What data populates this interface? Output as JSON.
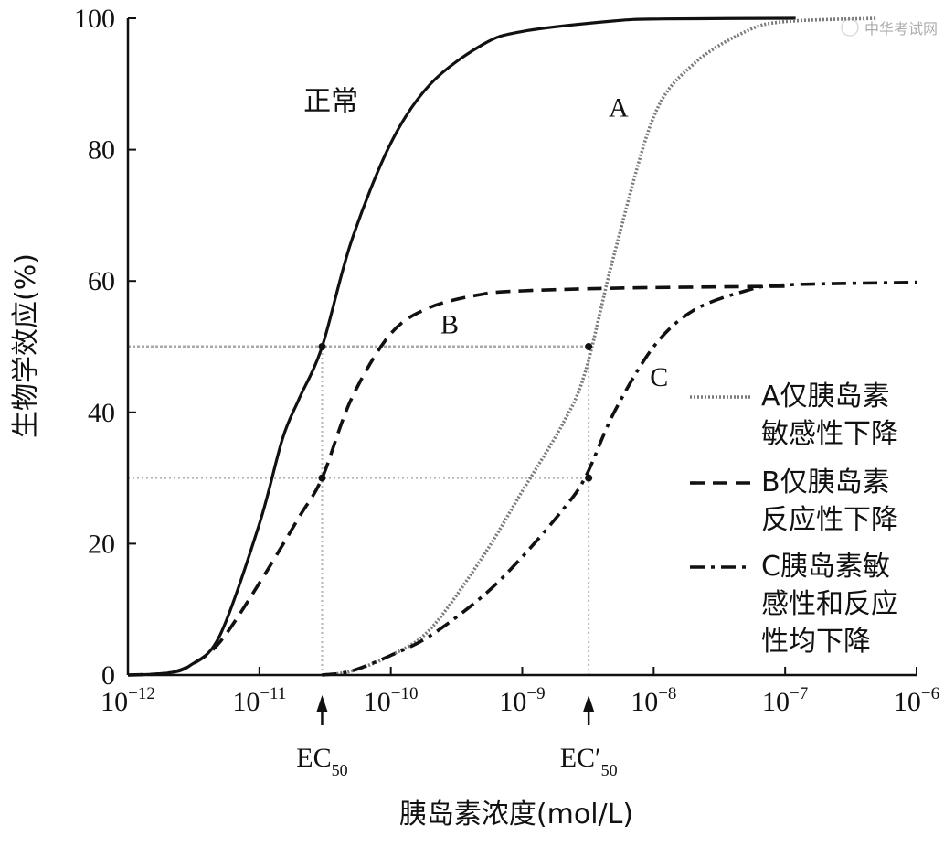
{
  "watermark": "中华考试网",
  "chart_data": {
    "type": "line",
    "title": "",
    "xlabel": "胰岛素浓度(mol/L)",
    "ylabel": "生物学效应(%)",
    "x_scale": "log",
    "xlim": [
      1e-12,
      1e-06
    ],
    "ylim": [
      0,
      100
    ],
    "x_ticks": [
      {
        "value": 1e-12,
        "base": "10",
        "exp": "−12"
      },
      {
        "value": 1e-11,
        "base": "10",
        "exp": "−11"
      },
      {
        "value": 1e-10,
        "base": "10",
        "exp": "−10"
      },
      {
        "value": 1e-09,
        "base": "10",
        "exp": "−9"
      },
      {
        "value": 1e-08,
        "base": "10",
        "exp": "−8"
      },
      {
        "value": 1e-07,
        "base": "10",
        "exp": "−7"
      },
      {
        "value": 1e-06,
        "base": "10",
        "exp": "−6"
      }
    ],
    "y_ticks": [
      "0",
      "20",
      "40",
      "60",
      "80",
      "100"
    ],
    "grid": false,
    "series": [
      {
        "key": "normal",
        "name": "正常",
        "style": "solid",
        "color": "#111111",
        "x": [
          1e-12,
          2e-12,
          3e-12,
          5e-12,
          1e-11,
          1.5e-11,
          2e-11,
          3e-11,
          5e-11,
          1e-10,
          2e-10,
          5e-10,
          1e-09,
          5e-09,
          1.2e-08,
          1.2e-07
        ],
        "y": [
          0,
          0.3,
          1.5,
          6,
          23,
          36,
          42,
          50,
          66,
          81,
          90,
          96,
          98,
          99.6,
          99.9,
          100
        ]
      },
      {
        "key": "A",
        "name": "A仅胰岛素敏感性下降",
        "style": "dotted",
        "color": "#7a7a7a",
        "x": [
          3e-11,
          5e-11,
          1e-10,
          2e-10,
          5e-10,
          1e-09,
          2e-09,
          3e-09,
          5e-09,
          1e-08,
          2e-08,
          5e-08,
          1e-07,
          5e-07
        ],
        "y": [
          0,
          0.6,
          3,
          7,
          18,
          28,
          38,
          46,
          64,
          85,
          93,
          98,
          99.5,
          100
        ]
      },
      {
        "key": "B",
        "name": "B仅胰岛素反应性下降",
        "style": "dashed",
        "color": "#111111",
        "x": [
          1e-12,
          2e-12,
          3e-12,
          5e-12,
          1e-11,
          2e-11,
          3e-11,
          5e-11,
          1e-10,
          2e-10,
          5e-10,
          1e-09,
          3e-09,
          1e-08,
          1e-07
        ],
        "y": [
          0,
          0.3,
          1.5,
          5,
          14,
          24,
          30,
          42,
          52,
          56,
          58,
          58.5,
          58.8,
          59,
          59.2
        ]
      },
      {
        "key": "C",
        "name": "C胰岛素敏感性和反应性均下降",
        "style": "dashdot",
        "color": "#111111",
        "x": [
          3e-11,
          5e-11,
          1e-10,
          2e-10,
          5e-10,
          1e-09,
          2e-09,
          3e-09,
          5e-09,
          1e-08,
          2e-08,
          5e-08,
          1e-07,
          1e-06
        ],
        "y": [
          0,
          0.6,
          3,
          6,
          12,
          18,
          25,
          30,
          40,
          50,
          55.5,
          58.5,
          59.4,
          59.8
        ]
      }
    ],
    "reference_lines": [
      {
        "y": 50,
        "x_from": 1e-12,
        "x_to": 3.2e-09
      },
      {
        "y": 30,
        "x_from": 1e-12,
        "x_to": 3.2e-09
      },
      {
        "x": 3e-11,
        "y_from": 0,
        "y_to": 50
      },
      {
        "x": 3.2e-09,
        "y_from": 0,
        "y_to": 50
      }
    ],
    "markers": [
      {
        "x": 3e-11,
        "y": 50
      },
      {
        "x": 3e-11,
        "y": 30
      },
      {
        "x": 3.2e-09,
        "y": 50
      },
      {
        "x": 3.2e-09,
        "y": 30
      }
    ],
    "curve_labels": [
      {
        "series": "normal",
        "text": "正常"
      },
      {
        "series": "A",
        "text": "A"
      },
      {
        "series": "B",
        "text": "B"
      },
      {
        "series": "C",
        "text": "C"
      }
    ],
    "annotations": [
      {
        "key": "ec50",
        "x": 3e-11,
        "text": "EC",
        "sub": "50"
      },
      {
        "key": "ec50prime",
        "x": 3.2e-09,
        "text": "EC′",
        "sub": "50"
      }
    ],
    "legend": {
      "placement": "right",
      "entries": [
        {
          "series": "A",
          "lines": [
            "A仅胰岛素",
            "敏感性下降"
          ]
        },
        {
          "series": "B",
          "lines": [
            "B仅胰岛素",
            "反应性下降"
          ]
        },
        {
          "series": "C",
          "lines": [
            "C胰岛素敏",
            "感性和反应",
            "性均下降"
          ]
        }
      ]
    }
  }
}
